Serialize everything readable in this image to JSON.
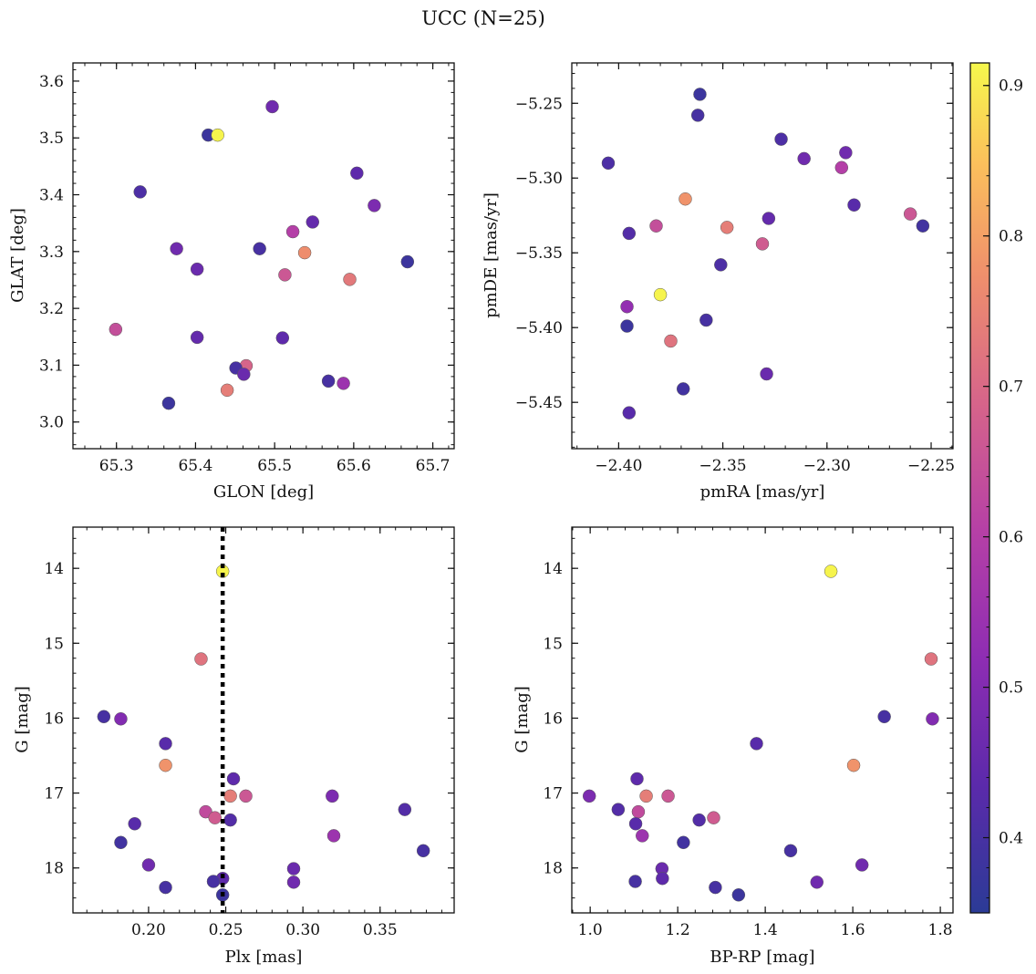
{
  "title": "UCC (N=25)",
  "colorbar": {
    "range": [
      0.35,
      0.915
    ],
    "ticks": [
      "0.4",
      "0.5",
      "0.6",
      "0.7",
      "0.8",
      "0.9"
    ],
    "colormap": "plasma"
  },
  "chart_data": [
    {
      "type": "scatter",
      "xlabel": "GLON [deg]",
      "ylabel": "GLAT [deg]",
      "xlim": [
        65.245,
        65.727
      ],
      "ylim": [
        2.953,
        3.632
      ],
      "xticks": [
        "65.3",
        "65.4",
        "65.5",
        "65.6",
        "65.7"
      ],
      "yticks": [
        "3.0",
        "3.1",
        "3.2",
        "3.3",
        "3.4",
        "3.5",
        "3.6"
      ],
      "points": [
        {
          "x": 65.416,
          "y": 3.505,
          "c": 0.38
        },
        {
          "x": 65.428,
          "y": 3.505,
          "c": 0.91
        },
        {
          "x": 65.497,
          "y": 3.555,
          "c": 0.47
        },
        {
          "x": 65.33,
          "y": 3.405,
          "c": 0.41
        },
        {
          "x": 65.604,
          "y": 3.438,
          "c": 0.44
        },
        {
          "x": 65.626,
          "y": 3.381,
          "c": 0.49
        },
        {
          "x": 65.548,
          "y": 3.352,
          "c": 0.45
        },
        {
          "x": 65.523,
          "y": 3.335,
          "c": 0.6
        },
        {
          "x": 65.376,
          "y": 3.305,
          "c": 0.47
        },
        {
          "x": 65.481,
          "y": 3.305,
          "c": 0.4
        },
        {
          "x": 65.538,
          "y": 3.298,
          "c": 0.77
        },
        {
          "x": 65.668,
          "y": 3.282,
          "c": 0.38
        },
        {
          "x": 65.402,
          "y": 3.269,
          "c": 0.46
        },
        {
          "x": 65.513,
          "y": 3.259,
          "c": 0.66
        },
        {
          "x": 65.595,
          "y": 3.251,
          "c": 0.73
        },
        {
          "x": 65.299,
          "y": 3.163,
          "c": 0.64
        },
        {
          "x": 65.402,
          "y": 3.149,
          "c": 0.45
        },
        {
          "x": 65.51,
          "y": 3.148,
          "c": 0.44
        },
        {
          "x": 65.464,
          "y": 3.099,
          "c": 0.69
        },
        {
          "x": 65.451,
          "y": 3.095,
          "c": 0.4
        },
        {
          "x": 65.461,
          "y": 3.084,
          "c": 0.46
        },
        {
          "x": 65.568,
          "y": 3.072,
          "c": 0.4
        },
        {
          "x": 65.587,
          "y": 3.068,
          "c": 0.55
        },
        {
          "x": 65.44,
          "y": 3.056,
          "c": 0.74
        },
        {
          "x": 65.366,
          "y": 3.033,
          "c": 0.38
        }
      ]
    },
    {
      "type": "scatter",
      "xlabel": "pmRA [mas/yr]",
      "ylabel": "pmDE [mas/yr]",
      "xlim": [
        -2.4225,
        -2.2395
      ],
      "ylim": [
        -5.481,
        -5.223
      ],
      "xticks": [
        "−2.40",
        "−2.35",
        "−2.30",
        "−2.25"
      ],
      "yticks": [
        "−5.25",
        "−5.30",
        "−5.35",
        "−5.40",
        "−5.45"
      ],
      "points": [
        {
          "x": -2.361,
          "y": -5.244,
          "c": 0.38
        },
        {
          "x": -2.362,
          "y": -5.258,
          "c": 0.4
        },
        {
          "x": -2.322,
          "y": -5.274,
          "c": 0.41
        },
        {
          "x": -2.291,
          "y": -5.283,
          "c": 0.47
        },
        {
          "x": -2.311,
          "y": -5.287,
          "c": 0.47
        },
        {
          "x": -2.405,
          "y": -5.29,
          "c": 0.41
        },
        {
          "x": -2.293,
          "y": -5.293,
          "c": 0.6
        },
        {
          "x": -2.368,
          "y": -5.314,
          "c": 0.78
        },
        {
          "x": -2.287,
          "y": -5.318,
          "c": 0.43
        },
        {
          "x": -2.26,
          "y": -5.324,
          "c": 0.66
        },
        {
          "x": -2.328,
          "y": -5.327,
          "c": 0.45
        },
        {
          "x": -2.382,
          "y": -5.332,
          "c": 0.64
        },
        {
          "x": -2.254,
          "y": -5.332,
          "c": 0.39
        },
        {
          "x": -2.348,
          "y": -5.333,
          "c": 0.74
        },
        {
          "x": -2.395,
          "y": -5.337,
          "c": 0.42
        },
        {
          "x": -2.331,
          "y": -5.344,
          "c": 0.67
        },
        {
          "x": -2.351,
          "y": -5.358,
          "c": 0.41
        },
        {
          "x": -2.38,
          "y": -5.378,
          "c": 0.91
        },
        {
          "x": -2.396,
          "y": -5.386,
          "c": 0.53
        },
        {
          "x": -2.358,
          "y": -5.395,
          "c": 0.4
        },
        {
          "x": -2.396,
          "y": -5.399,
          "c": 0.38
        },
        {
          "x": -2.375,
          "y": -5.409,
          "c": 0.72
        },
        {
          "x": -2.329,
          "y": -5.431,
          "c": 0.46
        },
        {
          "x": -2.369,
          "y": -5.441,
          "c": 0.39
        },
        {
          "x": -2.395,
          "y": -5.457,
          "c": 0.43
        }
      ]
    },
    {
      "type": "scatter",
      "xlabel": "Plx [mas]",
      "ylabel": "G [mag]",
      "xlim": [
        0.151,
        0.398
      ],
      "ylim": [
        18.6,
        13.45
      ],
      "yinverted": true,
      "xticks": [
        "0.20",
        "0.25",
        "0.30",
        "0.35"
      ],
      "yticks": [
        "14",
        "15",
        "16",
        "17",
        "18"
      ],
      "vline": 0.248,
      "points": [
        {
          "x": 0.248,
          "y": 14.04,
          "c": 0.91
        },
        {
          "x": 0.234,
          "y": 15.21,
          "c": 0.72
        },
        {
          "x": 0.171,
          "y": 15.98,
          "c": 0.4
        },
        {
          "x": 0.182,
          "y": 16.01,
          "c": 0.5
        },
        {
          "x": 0.211,
          "y": 16.34,
          "c": 0.43
        },
        {
          "x": 0.211,
          "y": 16.63,
          "c": 0.78
        },
        {
          "x": 0.255,
          "y": 16.81,
          "c": 0.44
        },
        {
          "x": 0.253,
          "y": 17.04,
          "c": 0.74
        },
        {
          "x": 0.263,
          "y": 17.04,
          "c": 0.66
        },
        {
          "x": 0.319,
          "y": 17.04,
          "c": 0.49
        },
        {
          "x": 0.366,
          "y": 17.22,
          "c": 0.42
        },
        {
          "x": 0.237,
          "y": 17.25,
          "c": 0.63
        },
        {
          "x": 0.243,
          "y": 17.33,
          "c": 0.67
        },
        {
          "x": 0.253,
          "y": 17.36,
          "c": 0.42
        },
        {
          "x": 0.191,
          "y": 17.41,
          "c": 0.43
        },
        {
          "x": 0.32,
          "y": 17.57,
          "c": 0.55
        },
        {
          "x": 0.182,
          "y": 17.66,
          "c": 0.39
        },
        {
          "x": 0.378,
          "y": 17.77,
          "c": 0.4
        },
        {
          "x": 0.2,
          "y": 17.96,
          "c": 0.47
        },
        {
          "x": 0.294,
          "y": 18.01,
          "c": 0.46
        },
        {
          "x": 0.248,
          "y": 18.14,
          "c": 0.44
        },
        {
          "x": 0.242,
          "y": 18.18,
          "c": 0.4
        },
        {
          "x": 0.294,
          "y": 18.19,
          "c": 0.47
        },
        {
          "x": 0.211,
          "y": 18.26,
          "c": 0.4
        },
        {
          "x": 0.248,
          "y": 18.36,
          "c": 0.38
        }
      ]
    },
    {
      "type": "scatter",
      "xlabel": "BP-RP [mag]",
      "ylabel": "G [mag]",
      "xlim": [
        0.958,
        1.829
      ],
      "ylim": [
        18.6,
        13.45
      ],
      "yinverted": true,
      "xticks": [
        "1.0",
        "1.2",
        "1.4",
        "1.6",
        "1.8"
      ],
      "yticks": [
        "14",
        "15",
        "16",
        "17",
        "18"
      ],
      "points": [
        {
          "x": 1.55,
          "y": 14.04,
          "c": 0.91
        },
        {
          "x": 1.779,
          "y": 15.21,
          "c": 0.72
        },
        {
          "x": 1.672,
          "y": 15.98,
          "c": 0.4
        },
        {
          "x": 1.782,
          "y": 16.01,
          "c": 0.5
        },
        {
          "x": 1.38,
          "y": 16.34,
          "c": 0.43
        },
        {
          "x": 1.602,
          "y": 16.63,
          "c": 0.78
        },
        {
          "x": 1.107,
          "y": 16.81,
          "c": 0.44
        },
        {
          "x": 1.128,
          "y": 17.04,
          "c": 0.74
        },
        {
          "x": 1.178,
          "y": 17.04,
          "c": 0.66
        },
        {
          "x": 0.998,
          "y": 17.04,
          "c": 0.49
        },
        {
          "x": 1.064,
          "y": 17.22,
          "c": 0.42
        },
        {
          "x": 1.11,
          "y": 17.25,
          "c": 0.63
        },
        {
          "x": 1.282,
          "y": 17.33,
          "c": 0.67
        },
        {
          "x": 1.249,
          "y": 17.36,
          "c": 0.42
        },
        {
          "x": 1.104,
          "y": 17.41,
          "c": 0.43
        },
        {
          "x": 1.119,
          "y": 17.57,
          "c": 0.55
        },
        {
          "x": 1.213,
          "y": 17.66,
          "c": 0.39
        },
        {
          "x": 1.458,
          "y": 17.77,
          "c": 0.4
        },
        {
          "x": 1.621,
          "y": 17.96,
          "c": 0.47
        },
        {
          "x": 1.164,
          "y": 18.01,
          "c": 0.46
        },
        {
          "x": 1.165,
          "y": 18.14,
          "c": 0.44
        },
        {
          "x": 1.103,
          "y": 18.18,
          "c": 0.4
        },
        {
          "x": 1.518,
          "y": 18.19,
          "c": 0.47
        },
        {
          "x": 1.286,
          "y": 18.26,
          "c": 0.4
        },
        {
          "x": 1.339,
          "y": 18.36,
          "c": 0.38
        }
      ]
    }
  ]
}
